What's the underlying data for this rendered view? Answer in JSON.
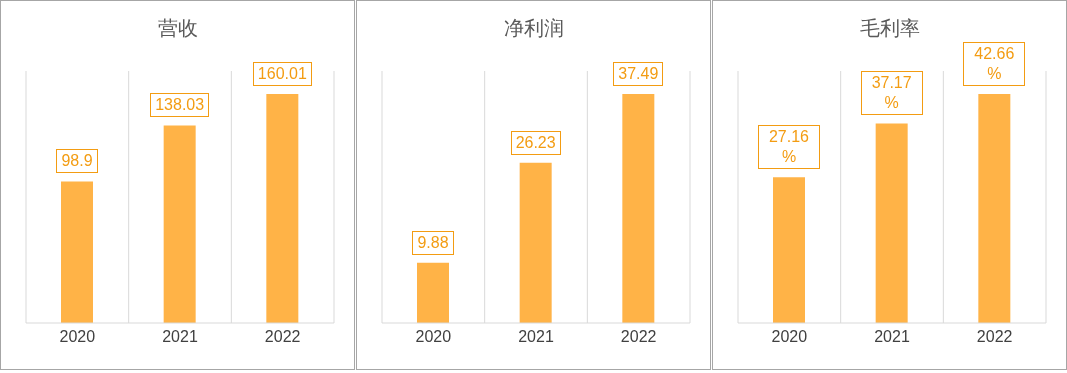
{
  "chart_data": [
    {
      "type": "bar",
      "title": "营收",
      "categories": [
        "2020",
        "2021",
        "2022"
      ],
      "values": [
        98.9,
        138.03,
        160.01
      ],
      "color": "#ffb347",
      "data_labels": true,
      "grid": "x"
    },
    {
      "type": "bar",
      "title": "净利润",
      "categories": [
        "2020",
        "2021",
        "2022"
      ],
      "values": [
        9.88,
        26.23,
        37.49
      ],
      "color": "#ffb347",
      "data_labels": true,
      "grid": "x"
    },
    {
      "type": "bar",
      "title": "毛利率",
      "categories": [
        "2020",
        "2021",
        "2022"
      ],
      "values": [
        27.16,
        37.17,
        42.66
      ],
      "value_labels": [
        "27.16%",
        "37.17%",
        "42.66%"
      ],
      "color": "#ffb347",
      "grid": "x"
    }
  ]
}
